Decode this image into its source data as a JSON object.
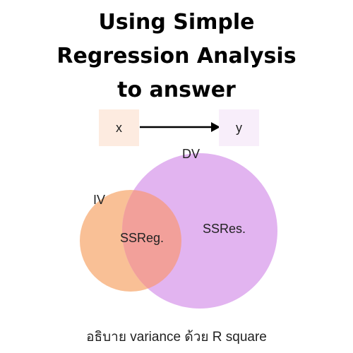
{
  "title": {
    "lines": [
      "Using Simple",
      "Regression Analysis",
      "to answer"
    ]
  },
  "flow": {
    "from_label": "x",
    "to_label": "y",
    "from_color": "#fdebe0",
    "to_color": "#f8eefa",
    "arrow_color": "#000000"
  },
  "venn": {
    "dv_label": "DV",
    "iv_label": "IV",
    "overlap_label": "SSReg.",
    "dv_only_label": "SSRes.",
    "dv_color": "#e2b4f0",
    "iv_color": "#f9c096",
    "overlap_color": "#f2a09a"
  },
  "caption": "อธิบาย variance ด้วย  R square"
}
